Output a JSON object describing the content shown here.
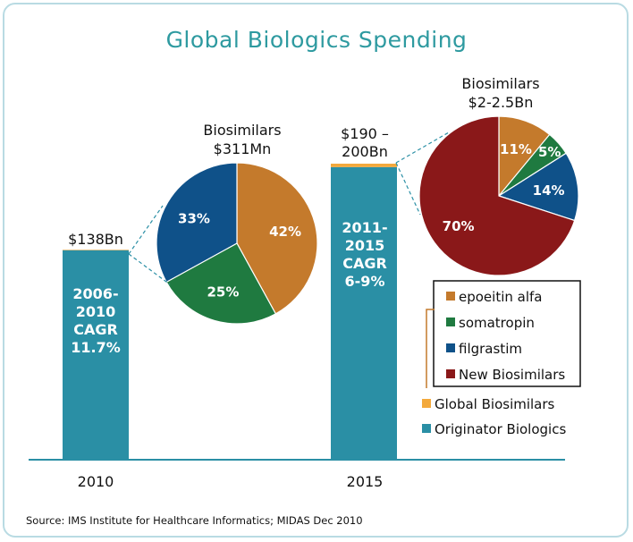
{
  "title": "Global Biologics Spending",
  "source": "Source: IMS Institute for Healthcare Informatics; MIDAS Dec 2010",
  "colors": {
    "originator": "#2a8fa5",
    "global_biosimilars": "#f3a93c",
    "epoetin": "#c47a2c",
    "somatropin": "#1f7a40",
    "filgrastim": "#0f5189",
    "new_biosimilars": "#8a1819",
    "axis": "#2a8fa5",
    "connector": "#2a8fa5"
  },
  "chart_data": [
    {
      "type": "bar",
      "categories": [
        "2010",
        "2015"
      ],
      "series": [
        {
          "name": "Originator Biologics",
          "values": [
            138,
            192.75
          ]
        },
        {
          "name": "Global Biosimilars",
          "values": [
            0.311,
            2.25
          ]
        }
      ],
      "bar_labels": [
        {
          "total": "$138Bn",
          "cagr": [
            "2006-",
            "2010",
            "CAGR",
            "11.7%"
          ]
        },
        {
          "total": [
            "$190 –",
            "200Bn"
          ],
          "cagr": [
            "2011-",
            "2015",
            "CAGR",
            "6-9%"
          ]
        }
      ],
      "ylim": [
        0,
        200
      ]
    },
    {
      "type": "pie",
      "title": [
        "Biosimilars",
        "$311Mn"
      ],
      "slices": [
        {
          "series": "epoeitin alfa",
          "value": 42,
          "label": "42%"
        },
        {
          "series": "somatropin",
          "value": 25,
          "label": "25%"
        },
        {
          "series": "filgrastim",
          "value": 33,
          "label": "33%"
        }
      ]
    },
    {
      "type": "pie",
      "title": [
        "Biosimilars",
        "$2-2.5Bn"
      ],
      "slices": [
        {
          "series": "epoeitin alfa",
          "value": 11,
          "label": "11%"
        },
        {
          "series": "somatropin",
          "value": 5,
          "label": "5%"
        },
        {
          "series": "filgrastim",
          "value": 14,
          "label": "14%"
        },
        {
          "series": "New Biosimilars",
          "value": 70,
          "label": "70%"
        }
      ]
    }
  ],
  "legend_pie": [
    "epoeitin alfa",
    "somatropin",
    "filgrastim",
    "New Biosimilars"
  ],
  "legend_bar": [
    "Global Biosimilars",
    "Originator Biologics"
  ]
}
